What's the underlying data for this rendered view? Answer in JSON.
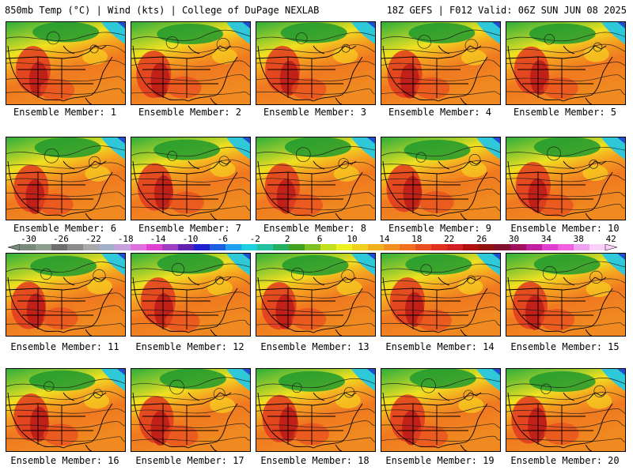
{
  "header": {
    "left": "850mb Temp (°C) | Wind (kts) | College of DuPage NEXLAB",
    "right": "18Z GEFS | F012 Valid: 06Z SUN JUN 08 2025"
  },
  "panels": [
    {
      "label": "Ensemble Member: 1"
    },
    {
      "label": "Ensemble Member: 2"
    },
    {
      "label": "Ensemble Member: 3"
    },
    {
      "label": "Ensemble Member: 4"
    },
    {
      "label": "Ensemble Member: 5"
    },
    {
      "label": "Ensemble Member: 6"
    },
    {
      "label": "Ensemble Member: 7"
    },
    {
      "label": "Ensemble Member: 8"
    },
    {
      "label": "Ensemble Member: 9"
    },
    {
      "label": "Ensemble Member: 10"
    },
    {
      "label": "Ensemble Member: 11"
    },
    {
      "label": "Ensemble Member: 12"
    },
    {
      "label": "Ensemble Member: 13"
    },
    {
      "label": "Ensemble Member: 14"
    },
    {
      "label": "Ensemble Member: 15"
    },
    {
      "label": "Ensemble Member: 16"
    },
    {
      "label": "Ensemble Member: 17"
    },
    {
      "label": "Ensemble Member: 18"
    },
    {
      "label": "Ensemble Member: 19"
    },
    {
      "label": "Ensemble Member: 20"
    }
  ],
  "colorbar": {
    "ticks": [
      "-30",
      "-26",
      "-22",
      "-18",
      "-14",
      "-10",
      "-6",
      "-2",
      "2",
      "6",
      "10",
      "14",
      "18",
      "22",
      "26",
      "30",
      "34",
      "38",
      "42"
    ],
    "colors": [
      "#7a8a7a",
      "#8e9e8e",
      "#6e6e6e",
      "#8a8a8a",
      "#a8a8a8",
      "#9fb0c8",
      "#c8a0e0",
      "#e070e0",
      "#e040d0",
      "#a040c0",
      "#6020b0",
      "#2020d0",
      "#2060e0",
      "#20a0f0",
      "#20d0e0",
      "#20c0a0",
      "#20b060",
      "#40a020",
      "#80c020",
      "#c0e020",
      "#f0f020",
      "#f0d020",
      "#f0b020",
      "#f09020",
      "#f07020",
      "#e85020",
      "#e03020",
      "#d02020",
      "#b01010",
      "#901010",
      "#801030",
      "#a01060",
      "#c020a0",
      "#e040d0",
      "#f060e0",
      "#f0a0f0",
      "#f8d0f8"
    ]
  }
}
